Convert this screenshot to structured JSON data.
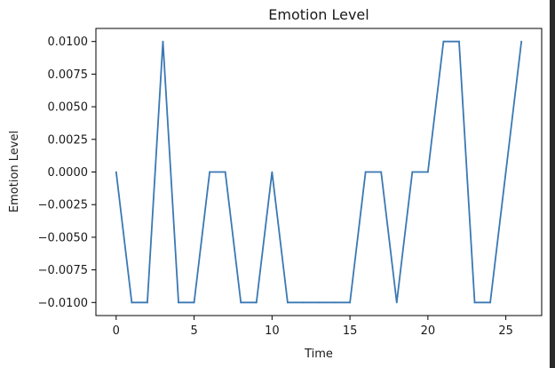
{
  "colors": {
    "line": "#3a78b4",
    "axes": "#000000",
    "background": "#ffffff",
    "right_strip": "#2b2b2b"
  },
  "chart_data": {
    "type": "line",
    "title": "Emotion Level",
    "xlabel": "Time",
    "ylabel": "Emotion Level",
    "xlim": [
      -1.3,
      27.3
    ],
    "ylim": [
      -0.011,
      0.011
    ],
    "grid": false,
    "legend": "none",
    "xticks": [
      0,
      5,
      10,
      15,
      20,
      25
    ],
    "xtick_labels": [
      "0",
      "5",
      "10",
      "15",
      "20",
      "25"
    ],
    "yticks": [
      -0.01,
      -0.0075,
      -0.005,
      -0.0025,
      0,
      0.0025,
      0.005,
      0.0075,
      0.01
    ],
    "ytick_labels": [
      "−0.0100",
      "−0.0075",
      "−0.0050",
      "−0.0025",
      "0.0000",
      "0.0025",
      "0.0050",
      "0.0075",
      "0.0100"
    ],
    "series": [
      {
        "x": [
          0,
          1,
          2,
          3,
          4,
          5,
          6,
          7,
          8,
          9,
          10,
          11,
          12,
          13,
          14,
          15,
          16,
          17,
          18,
          19,
          20,
          21,
          22,
          23,
          24,
          25,
          26
        ],
        "values": [
          0,
          -0.01,
          -0.01,
          0.01,
          -0.01,
          -0.01,
          0,
          0,
          -0.01,
          -0.01,
          0,
          -0.01,
          -0.01,
          -0.01,
          -0.01,
          -0.01,
          0,
          0,
          -0.01,
          0,
          0,
          0.01,
          0.01,
          -0.01,
          -0.01,
          0,
          0.01
        ]
      }
    ]
  }
}
